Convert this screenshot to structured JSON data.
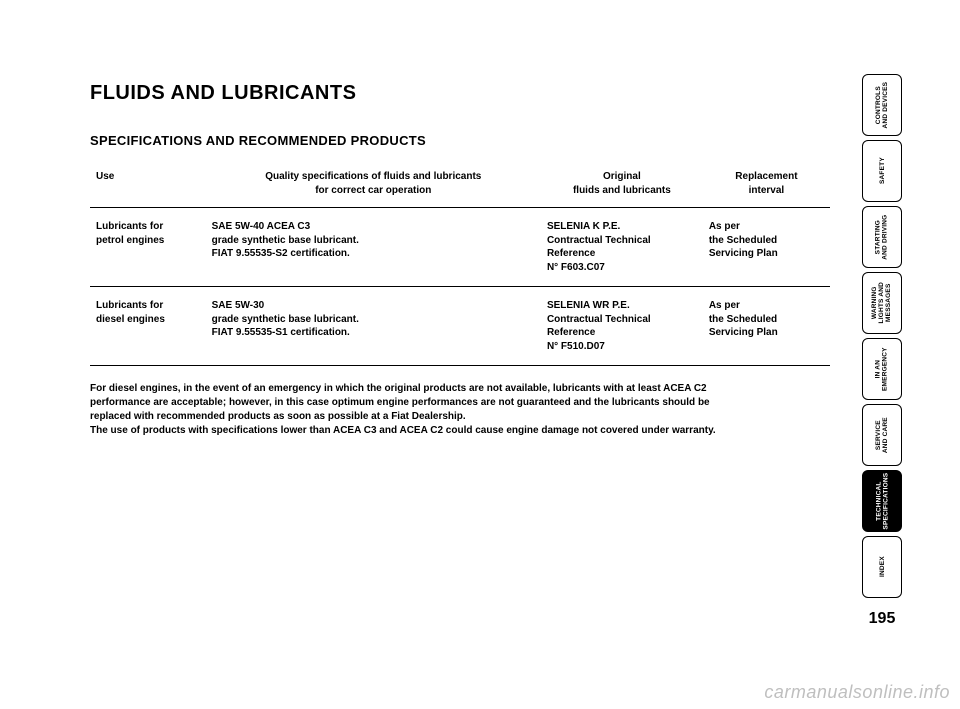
{
  "page": {
    "title": "FLUIDS AND LUBRICANTS",
    "subtitle": "SPECIFICATIONS AND RECOMMENDED PRODUCTS",
    "number": "195",
    "bottom_url": "carmanualsonline.info"
  },
  "table": {
    "headers": {
      "use": "Use",
      "quality": "Quality specifications of fluids and lubricants\nfor correct car operation",
      "original": "Original\nfluids and lubricants",
      "replacement": "Replacement\ninterval"
    },
    "rows": [
      {
        "use": "Lubricants for\npetrol engines",
        "quality_line1": "SAE 5W-40 ACEA C3",
        "quality_line2": "grade synthetic base lubricant.",
        "quality_line3": "FIAT 9.55535-S2 certification.",
        "original_line1": "SELENIA K P.E.",
        "original_line2": "Contractual Technical",
        "original_line3": "Reference",
        "original_line4": "N° F603.C07",
        "replacement_line1": "As per",
        "replacement_line2": "the Scheduled",
        "replacement_line3": "Servicing Plan"
      },
      {
        "use": "Lubricants for\ndiesel engines",
        "quality_line1": "SAE 5W-30",
        "quality_line2": "grade synthetic base lubricant.",
        "quality_line3": "FIAT 9.55535-S1 certification.",
        "original_line1": "SELENIA WR P.E.",
        "original_line2": "Contractual Technical",
        "original_line3": "Reference",
        "original_line4": "N° F510.D07",
        "replacement_line1": "As per",
        "replacement_line2": "the Scheduled",
        "replacement_line3": "Servicing Plan"
      }
    ]
  },
  "footnote": {
    "line1": "For diesel engines, in the event of an emergency in which the original products are not available, lubricants with at least ACEA C2",
    "line2": "performance are acceptable; however, in this case optimum engine performances are not guaranteed and the lubricants should be",
    "line3": "replaced with recommended products as soon as possible at a Fiat Dealership.",
    "line4": "The use of products with specifications lower than ACEA C3 and ACEA C2 could cause engine damage not covered under warranty."
  },
  "tabs": [
    {
      "label": "CONTROLS\nAND DEVICES",
      "active": false
    },
    {
      "label": "SAFETY",
      "active": false
    },
    {
      "label": "STARTING\nAND DRIVING",
      "active": false
    },
    {
      "label": "WARNING\nLIGHTS AND\nMESSAGES",
      "active": false
    },
    {
      "label": "IN AN\nEMERGENCY",
      "active": false
    },
    {
      "label": "SERVICE\nAND CARE",
      "active": false
    },
    {
      "label": "TECHNICAL\nSPECIFICATIONS",
      "active": true
    },
    {
      "label": "INDEX",
      "active": false
    }
  ]
}
